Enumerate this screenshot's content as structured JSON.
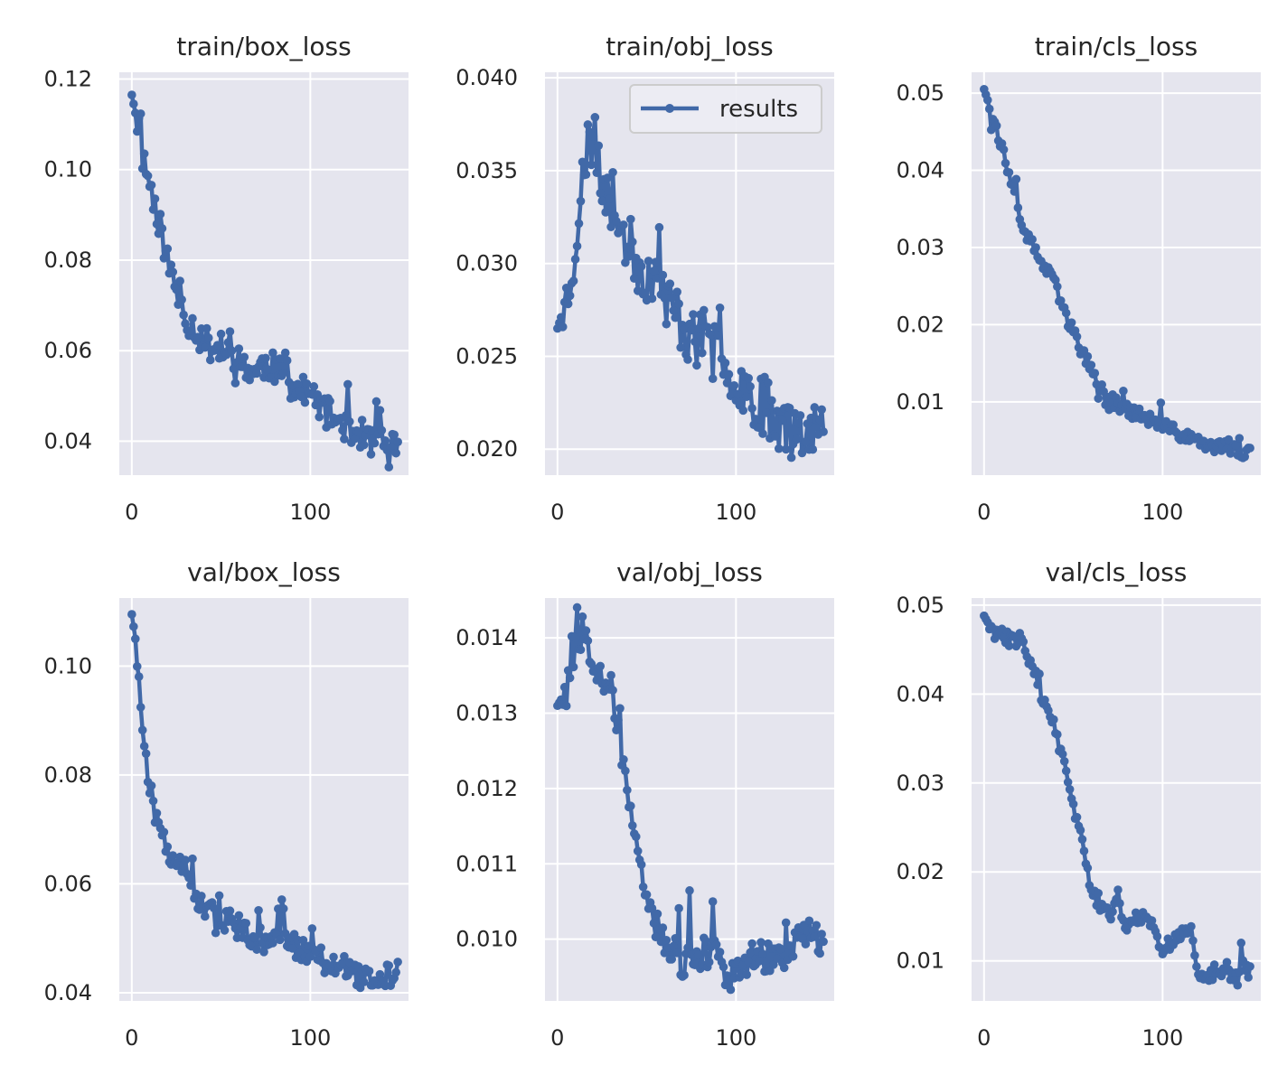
{
  "style": {
    "panel_bg": "#e5e5ee",
    "grid_color": "#ffffff",
    "series_color": "#4169a8",
    "text_color": "#262626",
    "legend_border": "#cccccc"
  },
  "chart_data": [
    {
      "type": "line",
      "title": "train/box_loss",
      "series_name": "results",
      "xlim": [
        -7,
        155
      ],
      "ylim": [
        0.0325,
        0.1215
      ],
      "xticks": [
        0,
        100
      ],
      "xtick_labels": [
        "0",
        "100"
      ],
      "yticks": [
        0.04,
        0.06,
        0.08,
        0.1,
        0.12
      ],
      "ytick_labels": [
        "0.04",
        "0.06",
        "0.08",
        "0.10",
        "0.12"
      ],
      "legend": null,
      "keypoints": [
        [
          0,
          0.1165
        ],
        [
          2,
          0.1125
        ],
        [
          4,
          0.108
        ],
        [
          6,
          0.103
        ],
        [
          10,
          0.097
        ],
        [
          15,
          0.089
        ],
        [
          20,
          0.08
        ],
        [
          25,
          0.073
        ],
        [
          30,
          0.0675
        ],
        [
          35,
          0.065
        ],
        [
          40,
          0.062
        ],
        [
          50,
          0.06
        ],
        [
          60,
          0.0575
        ],
        [
          70,
          0.055
        ],
        [
          75,
          0.0575
        ],
        [
          80,
          0.056
        ],
        [
          90,
          0.052
        ],
        [
          100,
          0.05
        ],
        [
          110,
          0.046
        ],
        [
          120,
          0.0435
        ],
        [
          130,
          0.041
        ],
        [
          140,
          0.039
        ],
        [
          145,
          0.0395
        ],
        [
          149,
          0.038
        ]
      ],
      "noise": 0.0035,
      "spike_prob": 0.12,
      "spike_amp": 0.006,
      "seed": 11
    },
    {
      "type": "line",
      "title": "train/obj_loss",
      "series_name": "results",
      "xlim": [
        -7,
        155
      ],
      "ylim": [
        0.0186,
        0.0403
      ],
      "xticks": [
        0,
        100
      ],
      "xtick_labels": [
        "0",
        "100"
      ],
      "yticks": [
        0.02,
        0.025,
        0.03,
        0.035,
        0.04
      ],
      "ytick_labels": [
        "0.020",
        "0.025",
        "0.030",
        "0.035",
        "0.040"
      ],
      "legend": "results",
      "keypoints": [
        [
          0,
          0.0265
        ],
        [
          5,
          0.028
        ],
        [
          10,
          0.031
        ],
        [
          15,
          0.035
        ],
        [
          18,
          0.037
        ],
        [
          22,
          0.035
        ],
        [
          28,
          0.034
        ],
        [
          35,
          0.032
        ],
        [
          45,
          0.03
        ],
        [
          55,
          0.029
        ],
        [
          65,
          0.0275
        ],
        [
          75,
          0.026
        ],
        [
          90,
          0.025
        ],
        [
          100,
          0.024
        ],
        [
          110,
          0.0228
        ],
        [
          120,
          0.022
        ],
        [
          130,
          0.021
        ],
        [
          140,
          0.0215
        ],
        [
          149,
          0.021
        ]
      ],
      "noise": 0.0016,
      "spike_prob": 0.1,
      "spike_amp": 0.0025,
      "seed": 23
    },
    {
      "type": "line",
      "title": "train/cls_loss",
      "series_name": "results",
      "xlim": [
        -7,
        155
      ],
      "ylim": [
        0.0005,
        0.0527
      ],
      "xticks": [
        0,
        100
      ],
      "xtick_labels": [
        "0",
        "100"
      ],
      "yticks": [
        0.01,
        0.02,
        0.03,
        0.04,
        0.05
      ],
      "ytick_labels": [
        "0.01",
        "0.02",
        "0.03",
        "0.04",
        "0.05"
      ],
      "legend": null,
      "keypoints": [
        [
          0,
          0.0505
        ],
        [
          5,
          0.047
        ],
        [
          10,
          0.043
        ],
        [
          15,
          0.038
        ],
        [
          20,
          0.034
        ],
        [
          25,
          0.031
        ],
        [
          30,
          0.029
        ],
        [
          35,
          0.027
        ],
        [
          40,
          0.025
        ],
        [
          45,
          0.022
        ],
        [
          50,
          0.019
        ],
        [
          55,
          0.0165
        ],
        [
          60,
          0.014
        ],
        [
          65,
          0.012
        ],
        [
          70,
          0.0105
        ],
        [
          80,
          0.009
        ],
        [
          90,
          0.008
        ],
        [
          100,
          0.0068
        ],
        [
          110,
          0.0058
        ],
        [
          120,
          0.005
        ],
        [
          130,
          0.0043
        ],
        [
          140,
          0.0037
        ],
        [
          149,
          0.0032
        ]
      ],
      "noise": 0.0009,
      "spike_prob": 0.08,
      "spike_amp": 0.003,
      "seed": 37
    },
    {
      "type": "line",
      "title": "val/box_loss",
      "series_name": "results",
      "xlim": [
        -7,
        155
      ],
      "ylim": [
        0.0385,
        0.1125
      ],
      "xticks": [
        0,
        100
      ],
      "xtick_labels": [
        "0",
        "100"
      ],
      "yticks": [
        0.04,
        0.06,
        0.08,
        0.1
      ],
      "ytick_labels": [
        "0.04",
        "0.06",
        "0.08",
        "0.10"
      ],
      "legend": null,
      "keypoints": [
        [
          0,
          0.1095
        ],
        [
          2,
          0.105
        ],
        [
          4,
          0.097
        ],
        [
          6,
          0.089
        ],
        [
          8,
          0.082
        ],
        [
          10,
          0.076
        ],
        [
          15,
          0.07
        ],
        [
          20,
          0.066
        ],
        [
          25,
          0.065
        ],
        [
          30,
          0.064
        ],
        [
          35,
          0.058
        ],
        [
          40,
          0.055
        ],
        [
          50,
          0.054
        ],
        [
          60,
          0.052
        ],
        [
          70,
          0.05
        ],
        [
          80,
          0.049
        ],
        [
          90,
          0.049
        ],
        [
          100,
          0.047
        ],
        [
          110,
          0.046
        ],
        [
          120,
          0.045
        ],
        [
          130,
          0.0425
        ],
        [
          140,
          0.0425
        ],
        [
          149,
          0.044
        ]
      ],
      "noise": 0.0022,
      "spike_prob": 0.12,
      "spike_amp": 0.006,
      "seed": 51
    },
    {
      "type": "line",
      "title": "val/obj_loss",
      "series_name": "results",
      "xlim": [
        -7,
        155
      ],
      "ylim": [
        0.00918,
        0.01453
      ],
      "xticks": [
        0,
        100
      ],
      "xtick_labels": [
        "0",
        "100"
      ],
      "yticks": [
        0.01,
        0.011,
        0.012,
        0.013,
        0.014
      ],
      "ytick_labels": [
        "0.010",
        "0.011",
        "0.012",
        "0.013",
        "0.014"
      ],
      "legend": null,
      "keypoints": [
        [
          0,
          0.0131
        ],
        [
          5,
          0.0133
        ],
        [
          10,
          0.0138
        ],
        [
          15,
          0.0142
        ],
        [
          20,
          0.0137
        ],
        [
          25,
          0.0135
        ],
        [
          30,
          0.0135
        ],
        [
          35,
          0.0125
        ],
        [
          40,
          0.0118
        ],
        [
          45,
          0.011
        ],
        [
          50,
          0.0105
        ],
        [
          55,
          0.0102
        ],
        [
          60,
          0.01
        ],
        [
          70,
          0.0097
        ],
        [
          80,
          0.0098
        ],
        [
          90,
          0.0099
        ],
        [
          95,
          0.0095
        ],
        [
          100,
          0.0096
        ],
        [
          110,
          0.0098
        ],
        [
          120,
          0.0097
        ],
        [
          130,
          0.0098
        ],
        [
          140,
          0.0101
        ],
        [
          149,
          0.01
        ]
      ],
      "noise": 0.00022,
      "spike_prob": 0.1,
      "spike_amp": 0.0006,
      "seed": 67
    },
    {
      "type": "line",
      "title": "val/cls_loss",
      "series_name": "results",
      "xlim": [
        -7,
        155
      ],
      "ylim": [
        0.0055,
        0.0508
      ],
      "xticks": [
        0,
        100
      ],
      "xtick_labels": [
        "0",
        "100"
      ],
      "yticks": [
        0.01,
        0.02,
        0.03,
        0.04,
        0.05
      ],
      "ytick_labels": [
        "0.01",
        "0.02",
        "0.03",
        "0.04",
        "0.05"
      ],
      "legend": null,
      "keypoints": [
        [
          0,
          0.0488
        ],
        [
          5,
          0.047
        ],
        [
          10,
          0.0465
        ],
        [
          15,
          0.0462
        ],
        [
          20,
          0.046
        ],
        [
          25,
          0.0455
        ],
        [
          28,
          0.043
        ],
        [
          30,
          0.041
        ],
        [
          35,
          0.038
        ],
        [
          40,
          0.036
        ],
        [
          45,
          0.032
        ],
        [
          50,
          0.027
        ],
        [
          55,
          0.024
        ],
        [
          60,
          0.018
        ],
        [
          65,
          0.0165
        ],
        [
          70,
          0.015
        ],
        [
          75,
          0.0175
        ],
        [
          80,
          0.013
        ],
        [
          85,
          0.015
        ],
        [
          90,
          0.015
        ],
        [
          95,
          0.014
        ],
        [
          100,
          0.011
        ],
        [
          105,
          0.012
        ],
        [
          110,
          0.013
        ],
        [
          115,
          0.014
        ],
        [
          120,
          0.009
        ],
        [
          125,
          0.008
        ],
        [
          130,
          0.009
        ],
        [
          135,
          0.0092
        ],
        [
          140,
          0.008
        ],
        [
          145,
          0.0095
        ],
        [
          149,
          0.0085
        ]
      ],
      "noise": 0.0009,
      "spike_prob": 0.08,
      "spike_amp": 0.002,
      "seed": 83
    }
  ]
}
